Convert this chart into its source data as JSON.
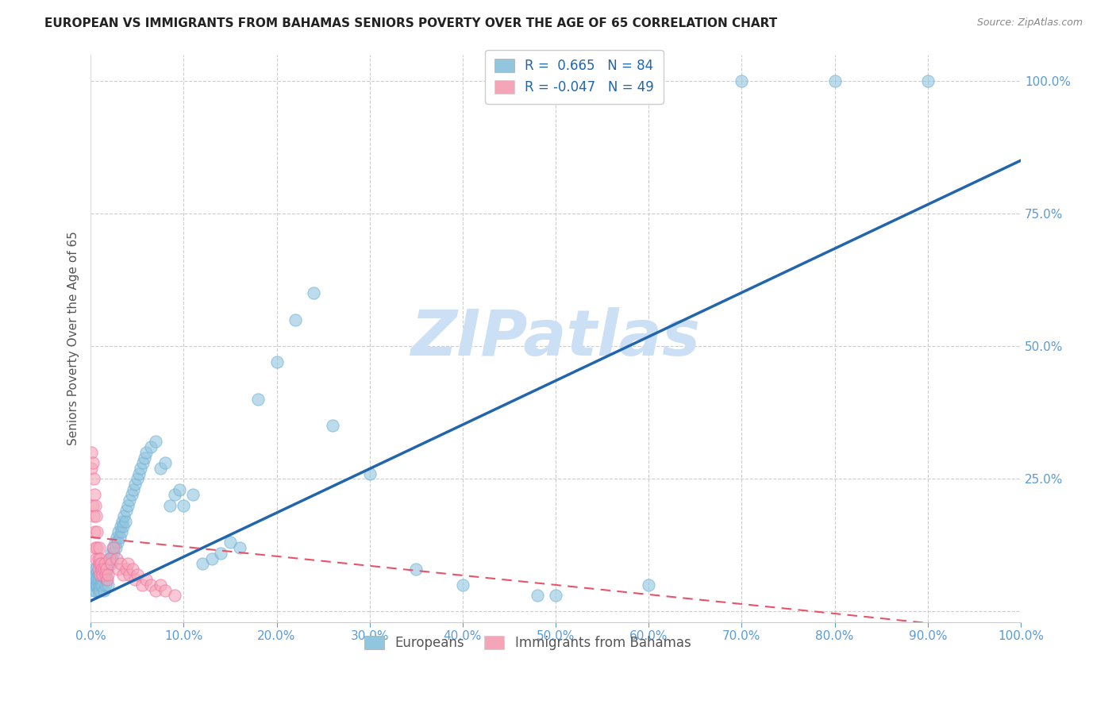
{
  "title": "EUROPEAN VS IMMIGRANTS FROM BAHAMAS SENIORS POVERTY OVER THE AGE OF 65 CORRELATION CHART",
  "source": "Source: ZipAtlas.com",
  "ylabel": "Seniors Poverty Over the Age of 65",
  "watermark": "ZIPatlas",
  "legend_label_1": "Europeans",
  "legend_label_2": "Immigrants from Bahamas",
  "r1": 0.665,
  "n1": 84,
  "r2": -0.047,
  "n2": 49,
  "blue_color": "#92c5de",
  "pink_color": "#f4a6b8",
  "blue_edge_color": "#6baed6",
  "pink_edge_color": "#f768a1",
  "blue_line_color": "#2166ac",
  "pink_line_color": "#e8536a",
  "blue_scatter": [
    [
      0.001,
      0.06
    ],
    [
      0.002,
      0.05
    ],
    [
      0.002,
      0.07
    ],
    [
      0.003,
      0.04
    ],
    [
      0.003,
      0.08
    ],
    [
      0.004,
      0.05
    ],
    [
      0.004,
      0.06
    ],
    [
      0.005,
      0.04
    ],
    [
      0.005,
      0.07
    ],
    [
      0.006,
      0.05
    ],
    [
      0.006,
      0.08
    ],
    [
      0.007,
      0.05
    ],
    [
      0.007,
      0.06
    ],
    [
      0.008,
      0.04
    ],
    [
      0.008,
      0.07
    ],
    [
      0.009,
      0.05
    ],
    [
      0.009,
      0.06
    ],
    [
      0.01,
      0.04
    ],
    [
      0.01,
      0.08
    ],
    [
      0.011,
      0.05
    ],
    [
      0.012,
      0.06
    ],
    [
      0.013,
      0.05
    ],
    [
      0.014,
      0.04
    ],
    [
      0.015,
      0.07
    ],
    [
      0.016,
      0.05
    ],
    [
      0.017,
      0.06
    ],
    [
      0.018,
      0.08
    ],
    [
      0.019,
      0.05
    ],
    [
      0.02,
      0.09
    ],
    [
      0.021,
      0.1
    ],
    [
      0.022,
      0.11
    ],
    [
      0.023,
      0.1
    ],
    [
      0.024,
      0.12
    ],
    [
      0.025,
      0.11
    ],
    [
      0.026,
      0.13
    ],
    [
      0.027,
      0.12
    ],
    [
      0.028,
      0.14
    ],
    [
      0.029,
      0.13
    ],
    [
      0.03,
      0.15
    ],
    [
      0.031,
      0.14
    ],
    [
      0.032,
      0.16
    ],
    [
      0.033,
      0.15
    ],
    [
      0.034,
      0.17
    ],
    [
      0.035,
      0.16
    ],
    [
      0.036,
      0.18
    ],
    [
      0.037,
      0.17
    ],
    [
      0.038,
      0.19
    ],
    [
      0.04,
      0.2
    ],
    [
      0.042,
      0.21
    ],
    [
      0.044,
      0.22
    ],
    [
      0.046,
      0.23
    ],
    [
      0.048,
      0.24
    ],
    [
      0.05,
      0.25
    ],
    [
      0.052,
      0.26
    ],
    [
      0.054,
      0.27
    ],
    [
      0.056,
      0.28
    ],
    [
      0.058,
      0.29
    ],
    [
      0.06,
      0.3
    ],
    [
      0.065,
      0.31
    ],
    [
      0.07,
      0.32
    ],
    [
      0.075,
      0.27
    ],
    [
      0.08,
      0.28
    ],
    [
      0.085,
      0.2
    ],
    [
      0.09,
      0.22
    ],
    [
      0.095,
      0.23
    ],
    [
      0.1,
      0.2
    ],
    [
      0.11,
      0.22
    ],
    [
      0.12,
      0.09
    ],
    [
      0.13,
      0.1
    ],
    [
      0.14,
      0.11
    ],
    [
      0.15,
      0.13
    ],
    [
      0.16,
      0.12
    ],
    [
      0.18,
      0.4
    ],
    [
      0.2,
      0.47
    ],
    [
      0.22,
      0.55
    ],
    [
      0.24,
      0.6
    ],
    [
      0.26,
      0.35
    ],
    [
      0.3,
      0.26
    ],
    [
      0.35,
      0.08
    ],
    [
      0.4,
      0.05
    ],
    [
      0.48,
      0.03
    ],
    [
      0.5,
      0.03
    ],
    [
      0.6,
      0.05
    ],
    [
      0.7,
      1.0
    ],
    [
      0.8,
      1.0
    ],
    [
      0.9,
      1.0
    ]
  ],
  "pink_scatter": [
    [
      0.001,
      0.27
    ],
    [
      0.001,
      0.3
    ],
    [
      0.002,
      0.28
    ],
    [
      0.002,
      0.2
    ],
    [
      0.003,
      0.25
    ],
    [
      0.003,
      0.18
    ],
    [
      0.004,
      0.22
    ],
    [
      0.004,
      0.15
    ],
    [
      0.005,
      0.2
    ],
    [
      0.005,
      0.12
    ],
    [
      0.006,
      0.18
    ],
    [
      0.006,
      0.1
    ],
    [
      0.007,
      0.15
    ],
    [
      0.007,
      0.12
    ],
    [
      0.008,
      0.1
    ],
    [
      0.008,
      0.08
    ],
    [
      0.009,
      0.12
    ],
    [
      0.009,
      0.09
    ],
    [
      0.01,
      0.1
    ],
    [
      0.01,
      0.07
    ],
    [
      0.011,
      0.09
    ],
    [
      0.012,
      0.08
    ],
    [
      0.013,
      0.07
    ],
    [
      0.014,
      0.08
    ],
    [
      0.015,
      0.09
    ],
    [
      0.016,
      0.07
    ],
    [
      0.017,
      0.08
    ],
    [
      0.018,
      0.06
    ],
    [
      0.019,
      0.07
    ],
    [
      0.02,
      0.1
    ],
    [
      0.022,
      0.09
    ],
    [
      0.025,
      0.12
    ],
    [
      0.028,
      0.1
    ],
    [
      0.03,
      0.08
    ],
    [
      0.032,
      0.09
    ],
    [
      0.035,
      0.07
    ],
    [
      0.038,
      0.08
    ],
    [
      0.04,
      0.09
    ],
    [
      0.042,
      0.07
    ],
    [
      0.045,
      0.08
    ],
    [
      0.048,
      0.06
    ],
    [
      0.05,
      0.07
    ],
    [
      0.055,
      0.05
    ],
    [
      0.06,
      0.06
    ],
    [
      0.065,
      0.05
    ],
    [
      0.07,
      0.04
    ],
    [
      0.075,
      0.05
    ],
    [
      0.08,
      0.04
    ],
    [
      0.09,
      0.03
    ]
  ],
  "xlim": [
    0.0,
    1.0
  ],
  "ylim": [
    -0.02,
    1.05
  ],
  "blue_line_x": [
    0.0,
    1.0
  ],
  "blue_line_y": [
    0.02,
    0.85
  ],
  "pink_line_x": [
    0.0,
    1.0
  ],
  "pink_line_y": [
    0.14,
    -0.04
  ],
  "xtick_positions": [
    0.0,
    0.1,
    0.2,
    0.3,
    0.4,
    0.5,
    0.6,
    0.7,
    0.8,
    0.9,
    1.0
  ],
  "ytick_positions": [
    0.0,
    0.25,
    0.5,
    0.75,
    1.0
  ],
  "background_color": "#ffffff",
  "grid_color": "#c8c8c8",
  "title_color": "#222222",
  "axis_tick_color": "#5b9bd5",
  "ylabel_color": "#555555",
  "watermark_color": "#cce0f5"
}
